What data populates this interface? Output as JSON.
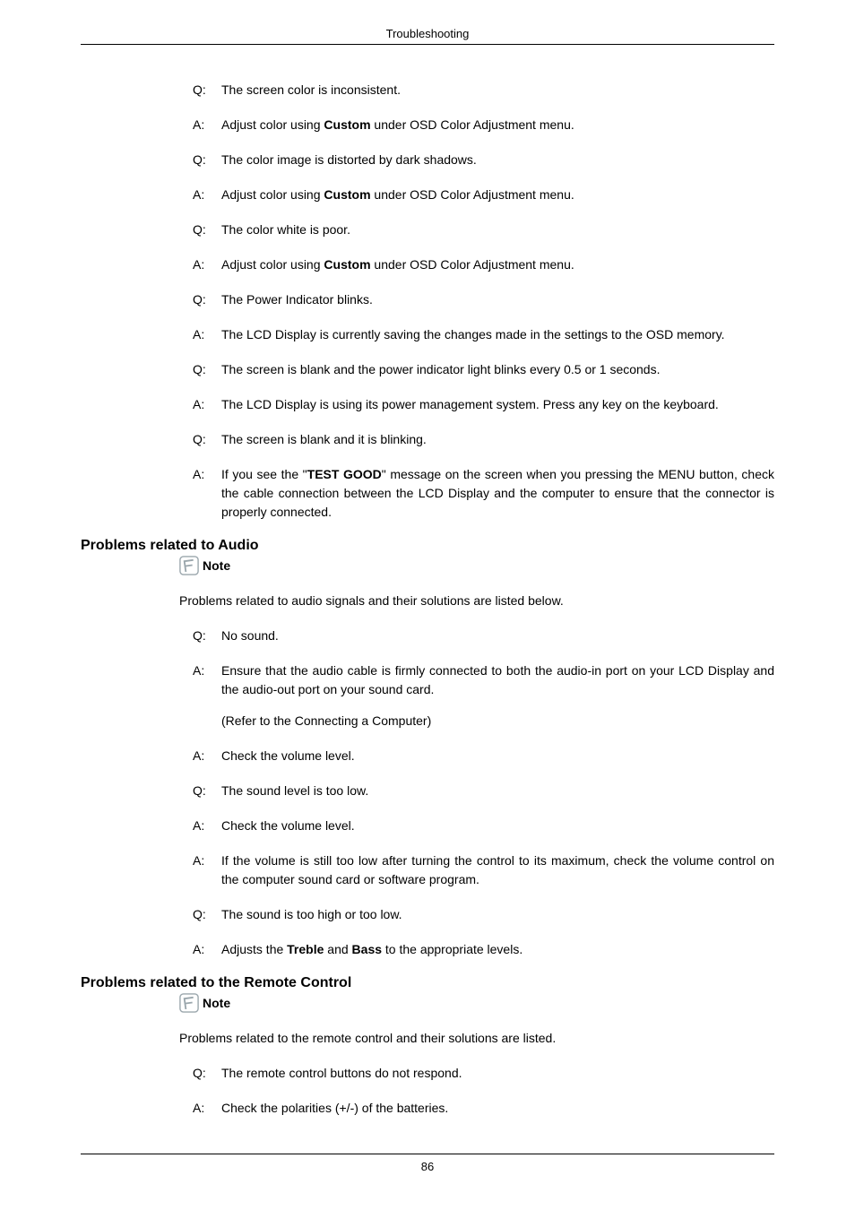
{
  "header": "Troubleshooting",
  "qa1": [
    {
      "l": "Q:",
      "t": "The screen color is inconsistent."
    },
    {
      "l": "A:",
      "t": [
        "Adjust color using ",
        {
          "b": "Custom"
        },
        " under OSD Color Adjustment menu."
      ]
    },
    {
      "l": "Q:",
      "t": "The color image is distorted by dark shadows."
    },
    {
      "l": "A:",
      "t": [
        "Adjust color using ",
        {
          "b": "Custom"
        },
        " under OSD Color Adjustment menu."
      ]
    },
    {
      "l": "Q:",
      "t": "The color white is poor."
    },
    {
      "l": "A:",
      "t": [
        "Adjust color using ",
        {
          "b": "Custom"
        },
        " under OSD Color Adjustment menu."
      ]
    },
    {
      "l": "Q:",
      "t": "The Power Indicator blinks."
    },
    {
      "l": "A:",
      "t": "The LCD Display is currently saving the changes made in the settings to the OSD memory."
    },
    {
      "l": "Q:",
      "t": "The screen is blank and the power indicator light blinks every 0.5 or 1 seconds."
    },
    {
      "l": "A:",
      "t": "The LCD Display is using its power management system. Press any key on the keyboard."
    },
    {
      "l": "Q:",
      "t": "The screen is blank and it is blinking."
    },
    {
      "l": "A:",
      "t": [
        "If you see the \"",
        {
          "b": "TEST GOOD"
        },
        "\" message on the screen when you pressing the MENU button, check the cable connection between the LCD Display and the computer to ensure that the connector is properly connected."
      ]
    }
  ],
  "section2": {
    "heading": "Problems related to Audio",
    "note_label": "Note",
    "note_desc": "Problems related to audio signals and their solutions are listed below."
  },
  "qa2": [
    {
      "l": "Q:",
      "t": "No sound."
    },
    {
      "l": "A:",
      "t": "Ensure that the audio cable is firmly connected to both the audio-in port on your LCD Display and the audio-out port on your sound card.",
      "sub": "(Refer to the Connecting a Computer)"
    },
    {
      "l": "A:",
      "t": "Check the volume level."
    },
    {
      "l": "Q:",
      "t": "The sound level is too low."
    },
    {
      "l": "A:",
      "t": "Check the volume level."
    },
    {
      "l": "A:",
      "t": "If the volume is still too low after turning the control to its maximum, check the volume control on the computer sound card or software program."
    },
    {
      "l": "Q:",
      "t": "The sound is too high or too low."
    },
    {
      "l": "A:",
      "t": [
        "Adjusts the ",
        {
          "b": "Treble"
        },
        " and ",
        {
          "b": "Bass"
        },
        " to the appropriate levels."
      ]
    }
  ],
  "section3": {
    "heading": "Problems related to the Remote Control",
    "note_label": "Note",
    "note_desc": "Problems related to the remote control and their solutions are listed."
  },
  "qa3": [
    {
      "l": "Q:",
      "t": "The remote control buttons do not respond."
    },
    {
      "l": "A:",
      "t": "Check the polarities (+/-) of the batteries."
    }
  ],
  "footer": "86"
}
